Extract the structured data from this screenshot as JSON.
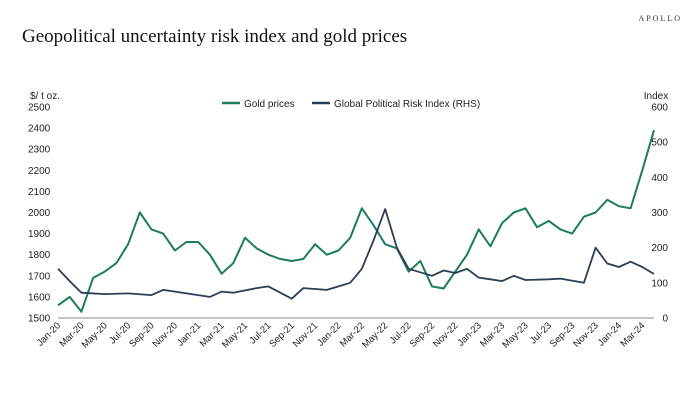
{
  "header": {
    "brand": "APOLLO"
  },
  "chart_data": {
    "type": "line",
    "title": "Geopolitical uncertainty risk index and gold prices",
    "y_left_label": "$/ t oz.",
    "y_right_label": "Index",
    "y_left_range": [
      1500,
      2500
    ],
    "y_right_range": [
      0,
      600
    ],
    "y_left_ticks": [
      "1500",
      "1600",
      "1700",
      "1800",
      "1900",
      "2000",
      "2100",
      "2200",
      "2300",
      "2400",
      "2500"
    ],
    "y_right_ticks": [
      "0",
      "100",
      "200",
      "300",
      "400",
      "500",
      "600"
    ],
    "x_range": [
      "2020-01",
      "2024-04"
    ],
    "x_ticks": [
      "Jan-20",
      "Mar-20",
      "May-20",
      "Jul-20",
      "Sep-20",
      "Nov-20",
      "Jan-21",
      "Mar-21",
      "May-21",
      "Jul-21",
      "Sep-21",
      "Nov-21",
      "Jan-22",
      "Mar-22",
      "May-22",
      "Jul-22",
      "Sep-22",
      "Nov-22",
      "Jan-23",
      "Mar-23",
      "May-23",
      "Jul-23",
      "Sep-23",
      "Nov-23",
      "Jan-24",
      "Mar-24"
    ],
    "legend_position": "top-center",
    "grid": false,
    "series": [
      {
        "name": "Gold prices",
        "axis": "left",
        "color": "#1d7d5b",
        "points": [
          [
            "2020-01",
            1560
          ],
          [
            "2020-02",
            1600
          ],
          [
            "2020-03",
            1530
          ],
          [
            "2020-04",
            1690
          ],
          [
            "2020-05",
            1720
          ],
          [
            "2020-06",
            1760
          ],
          [
            "2020-07",
            1850
          ],
          [
            "2020-08",
            2000
          ],
          [
            "2020-09",
            1920
          ],
          [
            "2020-10",
            1900
          ],
          [
            "2020-11",
            1820
          ],
          [
            "2020-12",
            1860
          ],
          [
            "2021-01",
            1860
          ],
          [
            "2021-02",
            1800
          ],
          [
            "2021-03",
            1710
          ],
          [
            "2021-04",
            1760
          ],
          [
            "2021-05",
            1880
          ],
          [
            "2021-06",
            1830
          ],
          [
            "2021-07",
            1800
          ],
          [
            "2021-08",
            1780
          ],
          [
            "2021-09",
            1770
          ],
          [
            "2021-10",
            1780
          ],
          [
            "2021-11",
            1850
          ],
          [
            "2021-12",
            1800
          ],
          [
            "2022-01",
            1820
          ],
          [
            "2022-02",
            1880
          ],
          [
            "2022-03",
            2020
          ],
          [
            "2022-04",
            1940
          ],
          [
            "2022-05",
            1850
          ],
          [
            "2022-06",
            1830
          ],
          [
            "2022-07",
            1720
          ],
          [
            "2022-08",
            1770
          ],
          [
            "2022-09",
            1650
          ],
          [
            "2022-10",
            1640
          ],
          [
            "2022-11",
            1720
          ],
          [
            "2022-12",
            1800
          ],
          [
            "2023-01",
            1920
          ],
          [
            "2023-02",
            1840
          ],
          [
            "2023-03",
            1950
          ],
          [
            "2023-04",
            2000
          ],
          [
            "2023-05",
            2020
          ],
          [
            "2023-06",
            1930
          ],
          [
            "2023-07",
            1960
          ],
          [
            "2023-08",
            1920
          ],
          [
            "2023-09",
            1900
          ],
          [
            "2023-10",
            1980
          ],
          [
            "2023-11",
            2000
          ],
          [
            "2023-12",
            2060
          ],
          [
            "2024-01",
            2030
          ],
          [
            "2024-02",
            2020
          ],
          [
            "2024-03",
            2200
          ],
          [
            "2024-04",
            2390
          ]
        ]
      },
      {
        "name": "Global Political Risk Index (RHS)",
        "axis": "right",
        "color": "#2c3e55",
        "points": [
          [
            "2020-01",
            140
          ],
          [
            "2020-02",
            105
          ],
          [
            "2020-03",
            72
          ],
          [
            "2020-05",
            68
          ],
          [
            "2020-07",
            70
          ],
          [
            "2020-09",
            65
          ],
          [
            "2020-10",
            80
          ],
          [
            "2020-12",
            70
          ],
          [
            "2021-02",
            60
          ],
          [
            "2021-03",
            75
          ],
          [
            "2021-04",
            72
          ],
          [
            "2021-06",
            85
          ],
          [
            "2021-07",
            90
          ],
          [
            "2021-09",
            55
          ],
          [
            "2021-10",
            85
          ],
          [
            "2021-12",
            80
          ],
          [
            "2022-01",
            90
          ],
          [
            "2022-02",
            100
          ],
          [
            "2022-03",
            140
          ],
          [
            "2022-04",
            220
          ],
          [
            "2022-05",
            310
          ],
          [
            "2022-06",
            200
          ],
          [
            "2022-07",
            140
          ],
          [
            "2022-09",
            120
          ],
          [
            "2022-10",
            135
          ],
          [
            "2022-11",
            128
          ],
          [
            "2022-12",
            140
          ],
          [
            "2023-01",
            115
          ],
          [
            "2023-02",
            110
          ],
          [
            "2023-03",
            105
          ],
          [
            "2023-04",
            120
          ],
          [
            "2023-05",
            108
          ],
          [
            "2023-07",
            110
          ],
          [
            "2023-08",
            112
          ],
          [
            "2023-10",
            100
          ],
          [
            "2023-11",
            200
          ],
          [
            "2023-12",
            155
          ],
          [
            "2024-01",
            145
          ],
          [
            "2024-02",
            160
          ],
          [
            "2024-03",
            145
          ],
          [
            "2024-04",
            125
          ]
        ]
      }
    ]
  }
}
